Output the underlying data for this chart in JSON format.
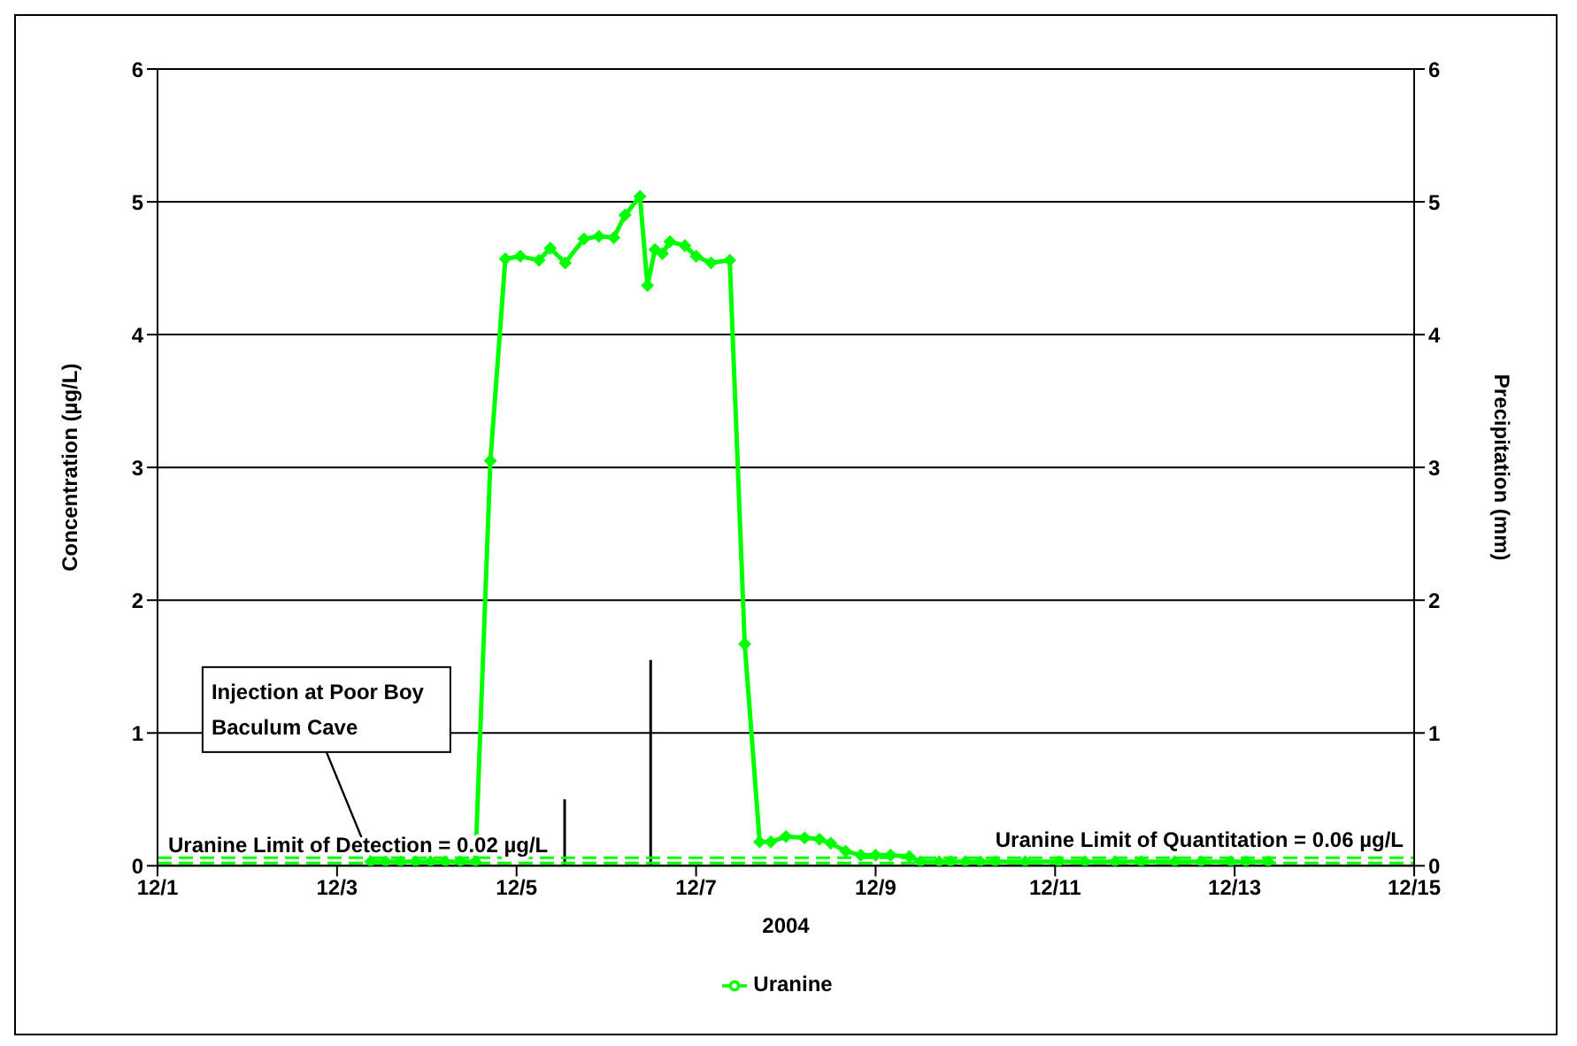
{
  "chart_data": {
    "type": "line",
    "xlabel": "2004",
    "ylabel": "Concentration (µg/L)",
    "y2label": "Precipitation (mm)",
    "xlim": [
      "2004-12-01",
      "2004-12-15"
    ],
    "xticks": [
      {
        "value": "2004-12-01",
        "label": "12/1"
      },
      {
        "value": "2004-12-03",
        "label": "12/3"
      },
      {
        "value": "2004-12-05",
        "label": "12/5"
      },
      {
        "value": "2004-12-07",
        "label": "12/7"
      },
      {
        "value": "2004-12-09",
        "label": "12/9"
      },
      {
        "value": "2004-12-11",
        "label": "12/11"
      },
      {
        "value": "2004-12-13",
        "label": "12/13"
      },
      {
        "value": "2004-12-15",
        "label": "12/15"
      }
    ],
    "ylim": [
      0,
      6
    ],
    "yticks": [
      0,
      1,
      2,
      3,
      4,
      5,
      6
    ],
    "y2lim": [
      0,
      6
    ],
    "y2ticks": [
      0,
      1,
      2,
      3,
      4,
      5,
      6
    ],
    "grid": "y",
    "legend": "bottom",
    "marker": "diamond",
    "line_style": "solid",
    "series": [
      {
        "name": "Uranine",
        "color": "#00ff00",
        "x": [
          "2004-12-03T09:00",
          "2004-12-03T13:00",
          "2004-12-03T17:00",
          "2004-12-03T21:00",
          "2004-12-04T01:00",
          "2004-12-04T05:00",
          "2004-12-04T09:00",
          "2004-12-04T13:00",
          "2004-12-04T17:00",
          "2004-12-04T21:00",
          "2004-12-05T01:00",
          "2004-12-05T06:00",
          "2004-12-05T09:00",
          "2004-12-05T13:00",
          "2004-12-05T18:00",
          "2004-12-05T22:00",
          "2004-12-06T02:00",
          "2004-12-06T05:00",
          "2004-12-06T09:00",
          "2004-12-06T11:00",
          "2004-12-06T13:00",
          "2004-12-06T15:00",
          "2004-12-06T17:00",
          "2004-12-06T21:00",
          "2004-12-07T00:00",
          "2004-12-07T04:00",
          "2004-12-07T09:00",
          "2004-12-07T13:00",
          "2004-12-07T17:00",
          "2004-12-07T20:00",
          "2004-12-08T00:00",
          "2004-12-08T05:00",
          "2004-12-08T09:00",
          "2004-12-08T12:00",
          "2004-12-08T16:00",
          "2004-12-08T20:00",
          "2004-12-09T00:00",
          "2004-12-09T04:00",
          "2004-12-09T09:00",
          "2004-12-09T12:00",
          "2004-12-09T17:00",
          "2004-12-09T20:00",
          "2004-12-10T00:00",
          "2004-12-10T04:00",
          "2004-12-10T08:00",
          "2004-12-10T16:00",
          "2004-12-11T01:00",
          "2004-12-11T08:00",
          "2004-12-11T16:00",
          "2004-12-11T23:00",
          "2004-12-12T08:00",
          "2004-12-12T15:00",
          "2004-12-12T23:00",
          "2004-12-13T03:00",
          "2004-12-13T09:00"
        ],
        "values": [
          0.03,
          0.03,
          0.03,
          0.03,
          0.03,
          0.03,
          0.03,
          0.03,
          3.05,
          4.57,
          4.59,
          4.56,
          4.65,
          4.54,
          4.72,
          4.74,
          4.73,
          4.9,
          5.04,
          4.37,
          4.64,
          4.61,
          4.7,
          4.67,
          4.59,
          4.54,
          4.56,
          1.67,
          0.18,
          0.18,
          0.22,
          0.21,
          0.2,
          0.17,
          0.11,
          0.08,
          0.08,
          0.08,
          0.07,
          0.03,
          0.03,
          0.03,
          0.03,
          0.03,
          0.03,
          0.03,
          0.03,
          0.03,
          0.03,
          0.03,
          0.03,
          0.03,
          0.03,
          0.03,
          0.03
        ]
      },
      {
        "color": "#000000",
        "type": "bar",
        "axis": "y2",
        "x": [
          "2004-12-05T13:00",
          "2004-12-06T12:00"
        ],
        "values": [
          0.5,
          1.55
        ]
      }
    ],
    "ref_lines": [
      {
        "axis": "y",
        "value": 0.02,
        "label": "Uranine Limit of Detection = 0.02 µg/L",
        "color": "#00ff00",
        "line_style": "dashed"
      },
      {
        "axis": "y",
        "value": 0.06,
        "label": "Uranine Limit of Quantitation = 0.06 µg/L",
        "color": "#00ff00",
        "line_style": "dashed"
      }
    ],
    "annotations": [
      {
        "text": "Injection at Poor Boy Baculum Cave",
        "x": "2004-12-03T09:00",
        "y": 0.03
      }
    ]
  }
}
